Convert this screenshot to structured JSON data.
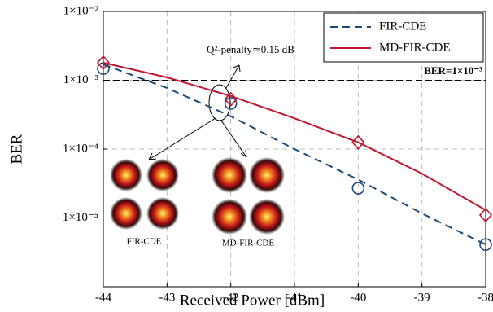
{
  "chart_data": {
    "type": "line",
    "x_label": "Received Power [dBm]",
    "y_label": "BER",
    "log_y": true,
    "grid": true,
    "legend": "upper right",
    "xlim": [
      -44,
      -38
    ],
    "xticks": [
      -44,
      -43,
      -42,
      -41,
      -40,
      -39,
      -38
    ],
    "ylim": [
      1e-06,
      0.01
    ],
    "yticks": [
      {
        "value": 1e-05,
        "label": "1×10⁻⁵"
      },
      {
        "value": 0.0001,
        "label": "1×10⁻⁴"
      },
      {
        "value": 0.001,
        "label": "1×10⁻³"
      },
      {
        "value": 0.01,
        "label": "1×10⁻²"
      }
    ],
    "series": [
      {
        "name": "FIR-CDE",
        "color": "#1c4a78",
        "dashed": true,
        "marker": "circle",
        "x": [
          -44,
          -43,
          -42,
          -41,
          -40,
          -39,
          -38
        ],
        "values": [
          0.0017,
          0.00077,
          0.0003,
          0.0001,
          3.6e-05,
          1.16e-05,
          4.1e-06
        ],
        "marker_x": [
          -44,
          -42,
          -40,
          -38
        ],
        "marker_values": [
          0.00148,
          0.00046,
          2.7e-05,
          4.1e-06
        ]
      },
      {
        "name": "MD-FIR-CDE",
        "color": "#c0182e",
        "dashed": false,
        "marker": "diamond",
        "x": [
          -44,
          -43,
          -42,
          -41,
          -40,
          -39,
          -38
        ],
        "values": [
          0.0018,
          0.0011,
          0.00059,
          0.00028,
          0.000125,
          4.4e-05,
          1.3e-05
        ],
        "marker_x": [
          -44,
          -42,
          -40,
          -38
        ],
        "marker_values": [
          0.0018,
          0.00053,
          0.000125,
          1.1e-05
        ]
      }
    ],
    "threshold": {
      "value": 0.001,
      "label": "BER=1×10⁻³"
    },
    "annotation": "Q²-penalty≃0.15 dB",
    "inset_labels": [
      "FIR-CDE",
      "MD-FIR-CDE"
    ]
  }
}
